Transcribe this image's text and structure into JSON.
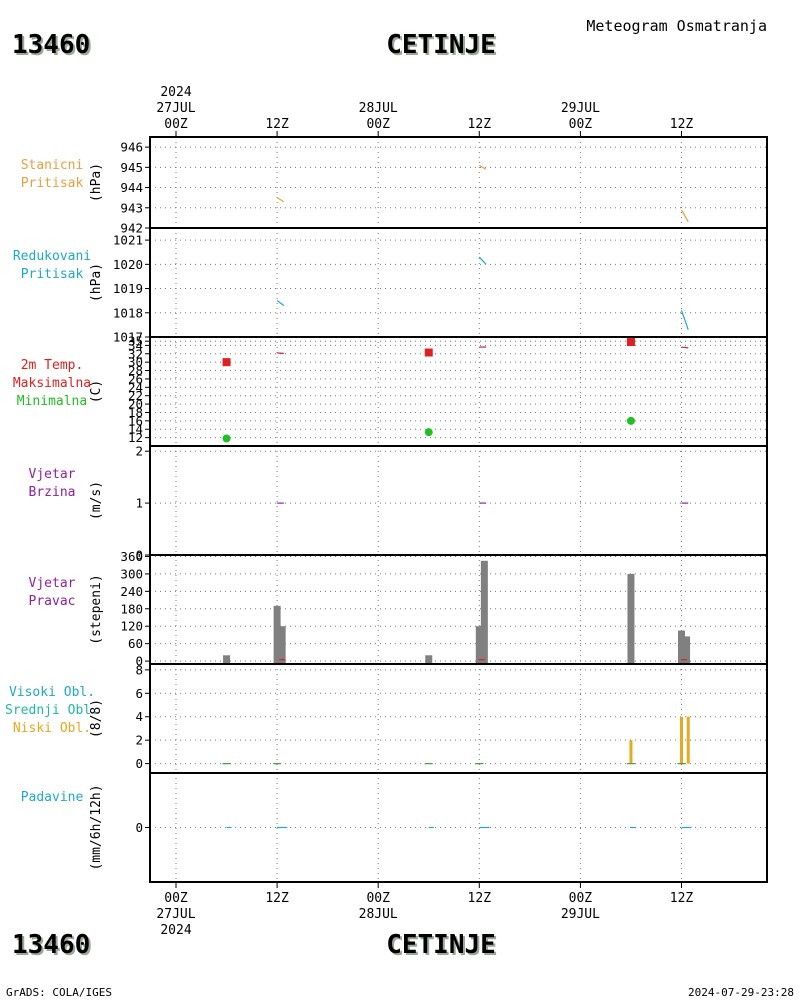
{
  "header": {
    "station_code": "13460",
    "station_name": "CETINJE",
    "product": "Meteogram Osmatranja"
  },
  "footer": {
    "software": "GrADS: COLA/IGES",
    "timestamp": "2024-07-29-23:28"
  },
  "time_axis": {
    "top": [
      {
        "t": 0,
        "lines": [
          "2024",
          "27JUL",
          "00Z"
        ]
      },
      {
        "t": 12,
        "lines": [
          "12Z"
        ]
      },
      {
        "t": 24,
        "lines": [
          "28JUL",
          "00Z"
        ]
      },
      {
        "t": 36,
        "lines": [
          "12Z"
        ]
      },
      {
        "t": 48,
        "lines": [
          "29JUL",
          "00Z"
        ]
      },
      {
        "t": 60,
        "lines": [
          "12Z"
        ]
      }
    ],
    "bottom": [
      {
        "t": 0,
        "lines": [
          "00Z",
          "27JUL",
          "2024"
        ]
      },
      {
        "t": 12,
        "lines": [
          "12Z"
        ]
      },
      {
        "t": 24,
        "lines": [
          "00Z",
          "28JUL"
        ]
      },
      {
        "t": 36,
        "lines": [
          "12Z"
        ]
      },
      {
        "t": 48,
        "lines": [
          "00Z",
          "29JUL"
        ]
      },
      {
        "t": 60,
        "lines": [
          "12Z"
        ]
      }
    ]
  },
  "chart_data": [
    {
      "id": "station-pressure",
      "type": "line",
      "labels": [
        "Stanicni",
        "Pritisak"
      ],
      "label_colors": [
        "#e8a040",
        "#e8a040"
      ],
      "ylabel": "(hPa)",
      "ylim": [
        942,
        946.5
      ],
      "yticks": [
        942,
        943,
        944,
        945,
        946
      ],
      "grid": true,
      "series": [
        {
          "color": "#e8a040",
          "segments": [
            [
              [
                12.0,
                943.5
              ],
              [
                12.8,
                943.3
              ]
            ],
            [
              [
                36.0,
                945.1
              ],
              [
                36.8,
                944.9
              ]
            ],
            [
              [
                60.0,
                942.9
              ],
              [
                60.8,
                942.3
              ]
            ]
          ]
        }
      ]
    },
    {
      "id": "reduced-pressure",
      "type": "line",
      "labels": [
        "Redukovani",
        "Pritisak"
      ],
      "label_colors": [
        "#20a8c8",
        "#20a8c8"
      ],
      "ylabel": "(hPa)",
      "ylim": [
        1017,
        1021.5
      ],
      "yticks": [
        1017,
        1018,
        1019,
        1020,
        1021
      ],
      "grid": true,
      "series": [
        {
          "color": "#20a8c8",
          "segments": [
            [
              [
                12.0,
                1018.5
              ],
              [
                12.8,
                1018.3
              ]
            ],
            [
              [
                36.0,
                1020.3
              ],
              [
                36.8,
                1020.0
              ]
            ],
            [
              [
                60.0,
                1018.1
              ],
              [
                60.8,
                1017.3
              ]
            ]
          ]
        }
      ]
    },
    {
      "id": "temperature",
      "type": "scatter",
      "labels": [
        "2m Temp.",
        "Maksimalna",
        "Minimalna"
      ],
      "label_colors": [
        "#e02020",
        "#e02020",
        "#20c020"
      ],
      "ylabel": "(C)",
      "ylim": [
        10,
        36
      ],
      "yticks": [
        12,
        14,
        16,
        18,
        20,
        22,
        24,
        26,
        28,
        30,
        32,
        34,
        35
      ],
      "grid": true,
      "series": [
        {
          "name": "Maksimalna",
          "color": "#e02020",
          "marker": "square",
          "points": [
            [
              6,
              30.0
            ],
            [
              30,
              32.3
            ],
            [
              54,
              34.8
            ]
          ]
        },
        {
          "name": "Minimalna",
          "color": "#20c020",
          "marker": "circle",
          "points": [
            [
              6,
              11.8
            ],
            [
              30,
              13.3
            ],
            [
              54,
              16.0
            ]
          ]
        }
      ],
      "temp_segments": {
        "color": "#c02060",
        "segments": [
          [
            [
              12.0,
              32.2
            ],
            [
              12.8,
              32.1
            ]
          ],
          [
            [
              36.0,
              33.6
            ],
            [
              36.8,
              33.6
            ]
          ],
          [
            [
              60.0,
              33.6
            ],
            [
              60.8,
              33.4
            ]
          ]
        ]
      }
    },
    {
      "id": "wind-speed",
      "type": "line",
      "labels": [
        "Vjetar",
        "Brzina"
      ],
      "label_colors": [
        "#9020a0",
        "#9020a0"
      ],
      "ylabel": "(m/s)",
      "ylim": [
        0,
        2.1
      ],
      "yticks": [
        0,
        1,
        2
      ],
      "grid": true,
      "series": [
        {
          "color": "#9020a0",
          "segments": [
            [
              [
                12.0,
                1.0
              ],
              [
                12.8,
                1.0
              ]
            ],
            [
              [
                36.0,
                1.0
              ],
              [
                36.8,
                1.0
              ]
            ],
            [
              [
                60.0,
                1.0
              ],
              [
                60.8,
                1.0
              ]
            ]
          ]
        }
      ]
    },
    {
      "id": "wind-direction",
      "type": "bar",
      "labels": [
        "Vjetar",
        "Pravac"
      ],
      "label_colors": [
        "#9020a0",
        "#9020a0"
      ],
      "ylabel": "(stepeni)",
      "ylim": [
        -10,
        365
      ],
      "yticks": [
        0,
        60,
        120,
        180,
        240,
        300,
        360
      ],
      "grid": true,
      "bar_color": "#808080",
      "bars": [
        {
          "t": 6,
          "value": 20
        },
        {
          "t": 12,
          "value": 190
        },
        {
          "t": 12.6,
          "value": 120
        },
        {
          "t": 30,
          "value": 20
        },
        {
          "t": 36,
          "value": 120
        },
        {
          "t": 36.6,
          "value": 345
        },
        {
          "t": 54,
          "value": 300
        },
        {
          "t": 60,
          "value": 105
        },
        {
          "t": 60.6,
          "value": 85
        }
      ],
      "marks_color": "#e02020",
      "marks": [
        {
          "t": 12.6,
          "value": 5
        },
        {
          "t": 36.3,
          "value": 5
        },
        {
          "t": 60.3,
          "value": 5
        }
      ]
    },
    {
      "id": "clouds",
      "type": "bar",
      "labels": [
        "Visoki Obl.",
        "Srednji Obl.",
        "Niski Obl."
      ],
      "label_colors": [
        "#20a8c8",
        "#20b8a0",
        "#e8a820"
      ],
      "ylabel": "(8/8)",
      "ylim": [
        -0.8,
        8.5
      ],
      "yticks": [
        0,
        2,
        4,
        6,
        8
      ],
      "grid": true,
      "series": [
        {
          "name": "Niski Obl.",
          "color": "#e8a820",
          "values": [
            [
              54,
              2
            ],
            [
              60,
              4
            ],
            [
              60.8,
              4
            ]
          ]
        }
      ],
      "zero_marks_color": "#40a040",
      "zero_marks": [
        6,
        12,
        30,
        36,
        54,
        60
      ]
    },
    {
      "id": "precipitation",
      "type": "line",
      "labels": [
        "Padavine"
      ],
      "label_colors": [
        "#20a8c8"
      ],
      "ylabel": "(mm/6h/12h)",
      "ylim": [
        -1,
        1
      ],
      "yticks": [
        0
      ],
      "grid": true,
      "series": [
        {
          "color": "#20a8c8",
          "segments": [
            [
              [
                6.0,
                0
              ],
              [
                6.6,
                0
              ]
            ],
            [
              [
                12.0,
                0
              ],
              [
                13.2,
                0
              ]
            ],
            [
              [
                30.0,
                0
              ],
              [
                30.6,
                0
              ]
            ],
            [
              [
                36.0,
                0
              ],
              [
                37.2,
                0
              ]
            ],
            [
              [
                54.0,
                0
              ],
              [
                54.6,
                0
              ]
            ],
            [
              [
                60.0,
                0
              ],
              [
                61.2,
                0
              ]
            ]
          ]
        }
      ]
    }
  ]
}
